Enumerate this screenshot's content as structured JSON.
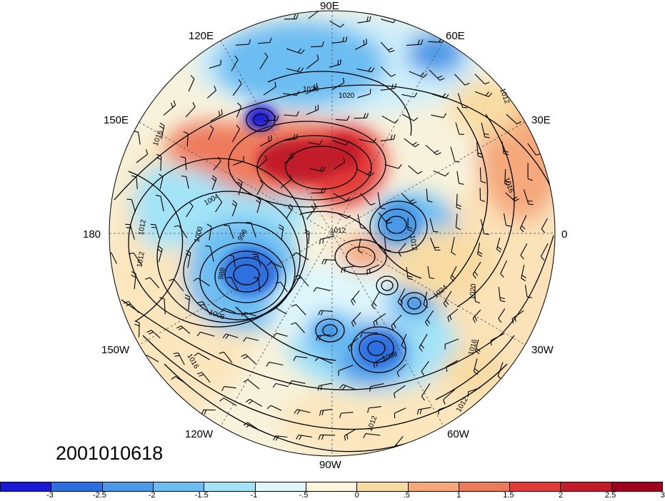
{
  "timestamp": "2001010618",
  "longitude_labels": {
    "e90": "90E",
    "e120": "120E",
    "e60": "60E",
    "e150": "150E",
    "e30": "30E",
    "lon180": "180",
    "lon0": "0",
    "w150": "150W",
    "w30": "30W",
    "w120": "120W",
    "w60": "60W",
    "w90": "90W"
  },
  "contour_labels": [
    "1020",
    "1016",
    "1012",
    "1012",
    "1004",
    "1000",
    "996",
    "988",
    "1008",
    "1016",
    "1012",
    "1024",
    "1020",
    "1016",
    "1012",
    "1008",
    "1012",
    "1012",
    "1012",
    "1016",
    "1020"
  ],
  "colorbar": {
    "colors": [
      "#1a1ad6",
      "#2d6fe0",
      "#4a99e8",
      "#6cbdf2",
      "#a3e3f7",
      "#dff7fb",
      "#fdf6dd",
      "#f8dba3",
      "#f5a97b",
      "#ee7a5c",
      "#e33b37",
      "#c21b2a",
      "#a0001b"
    ],
    "tick_labels": [
      "-3",
      "-2.5",
      "-2",
      "-1.5",
      "-1",
      "-.5",
      "0",
      ".5",
      "1",
      "1.5",
      "2",
      "2.5",
      "3"
    ]
  }
}
